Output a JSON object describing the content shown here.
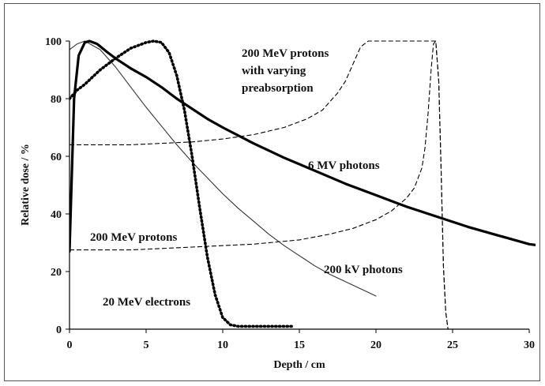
{
  "chart_data": {
    "type": "line",
    "xlabel": "Depth / cm",
    "ylabel": "Relative dose / %",
    "xlim": [
      0,
      30
    ],
    "ylim": [
      0,
      100
    ],
    "x_ticks": [
      0,
      5,
      10,
      15,
      20,
      25,
      30
    ],
    "y_ticks": [
      0,
      20,
      40,
      60,
      80,
      100
    ],
    "grid": false,
    "annotations": [
      {
        "id": "protons_varying",
        "lines": [
          "200 MeV protons",
          "with varying",
          "preabsorption"
        ]
      },
      {
        "id": "mv6",
        "lines": [
          "6 MV photons"
        ]
      },
      {
        "id": "protons",
        "lines": [
          "200 MeV protons"
        ]
      },
      {
        "id": "kv200",
        "lines": [
          "200 kV photons"
        ]
      },
      {
        "id": "electrons",
        "lines": [
          "20 MeV electrons"
        ]
      }
    ],
    "series": [
      {
        "name": "6 MV photons",
        "style": "solid-thick",
        "color": "#000000",
        "points": [
          [
            0,
            27
          ],
          [
            0.3,
            80
          ],
          [
            0.6,
            95
          ],
          [
            1,
            99.5
          ],
          [
            1.3,
            100
          ],
          [
            1.8,
            99
          ],
          [
            2.5,
            96
          ],
          [
            3,
            94
          ],
          [
            4,
            90.5
          ],
          [
            5,
            87.5
          ],
          [
            6,
            84
          ],
          [
            7,
            80
          ],
          [
            8,
            76.5
          ],
          [
            9,
            73
          ],
          [
            10,
            70
          ],
          [
            12,
            64.5
          ],
          [
            14,
            59.5
          ],
          [
            16,
            55
          ],
          [
            18,
            50.5
          ],
          [
            20,
            46.5
          ],
          [
            22,
            42.5
          ],
          [
            24,
            39
          ],
          [
            26,
            35.5
          ],
          [
            28,
            32.5
          ],
          [
            30,
            29.5
          ],
          [
            31,
            28.8
          ]
        ]
      },
      {
        "name": "200 kV photons",
        "style": "solid-thin",
        "color": "#333333",
        "points": [
          [
            0,
            97
          ],
          [
            0.5,
            99
          ],
          [
            1,
            100
          ],
          [
            2,
            97
          ],
          [
            3,
            91
          ],
          [
            4,
            84
          ],
          [
            5,
            77
          ],
          [
            6,
            70.5
          ],
          [
            7,
            64
          ],
          [
            8,
            58
          ],
          [
            9,
            52.5
          ],
          [
            10,
            47
          ],
          [
            11,
            42
          ],
          [
            12,
            37.5
          ],
          [
            13,
            33
          ],
          [
            14,
            29
          ],
          [
            15,
            25.5
          ],
          [
            16,
            22
          ],
          [
            17,
            19
          ],
          [
            18,
            16.5
          ],
          [
            19,
            14
          ],
          [
            20,
            11.5
          ]
        ]
      },
      {
        "name": "20 MeV electrons",
        "style": "dotted-thick",
        "color": "#000000",
        "points": [
          [
            0,
            80
          ],
          [
            0.5,
            83
          ],
          [
            1,
            85
          ],
          [
            2,
            90
          ],
          [
            3,
            94
          ],
          [
            4,
            97.5
          ],
          [
            5,
            99.5
          ],
          [
            5.5,
            100
          ],
          [
            6,
            99.5
          ],
          [
            6.5,
            96
          ],
          [
            7,
            88
          ],
          [
            7.5,
            76
          ],
          [
            8,
            60
          ],
          [
            8.5,
            42
          ],
          [
            9,
            25
          ],
          [
            9.5,
            12
          ],
          [
            10,
            4
          ],
          [
            10.5,
            1.5
          ],
          [
            11,
            1
          ],
          [
            14.5,
            1
          ]
        ]
      },
      {
        "name": "200 MeV protons",
        "style": "dashed",
        "color": "#000000",
        "points": [
          [
            0,
            27.5
          ],
          [
            4,
            27.5
          ],
          [
            8,
            28.5
          ],
          [
            12,
            29.5
          ],
          [
            15,
            31
          ],
          [
            17,
            33
          ],
          [
            18.5,
            35
          ],
          [
            20,
            38
          ],
          [
            21,
            41
          ],
          [
            22,
            45.5
          ],
          [
            22.5,
            49
          ],
          [
            23,
            56
          ],
          [
            23.2,
            63
          ],
          [
            23.4,
            75
          ],
          [
            23.6,
            90
          ],
          [
            23.75,
            99
          ],
          [
            23.9,
            100
          ],
          [
            24.1,
            86
          ],
          [
            24.25,
            55
          ],
          [
            24.4,
            22
          ],
          [
            24.55,
            6
          ],
          [
            24.7,
            0
          ]
        ]
      },
      {
        "name": "200 MeV protons with varying preabsorption",
        "style": "dashed",
        "color": "#000000",
        "points": [
          [
            0,
            64
          ],
          [
            4,
            64
          ],
          [
            8,
            65
          ],
          [
            10,
            66
          ],
          [
            12,
            67.5
          ],
          [
            14,
            70
          ],
          [
            15.5,
            73
          ],
          [
            16.5,
            76
          ],
          [
            17.5,
            82
          ],
          [
            18,
            86
          ],
          [
            18.5,
            92
          ],
          [
            19,
            98
          ],
          [
            19.5,
            100
          ],
          [
            23.9,
            100
          ],
          [
            24.1,
            86
          ],
          [
            24.25,
            55
          ],
          [
            24.4,
            22
          ],
          [
            24.55,
            6
          ],
          [
            24.7,
            0
          ]
        ]
      }
    ]
  }
}
